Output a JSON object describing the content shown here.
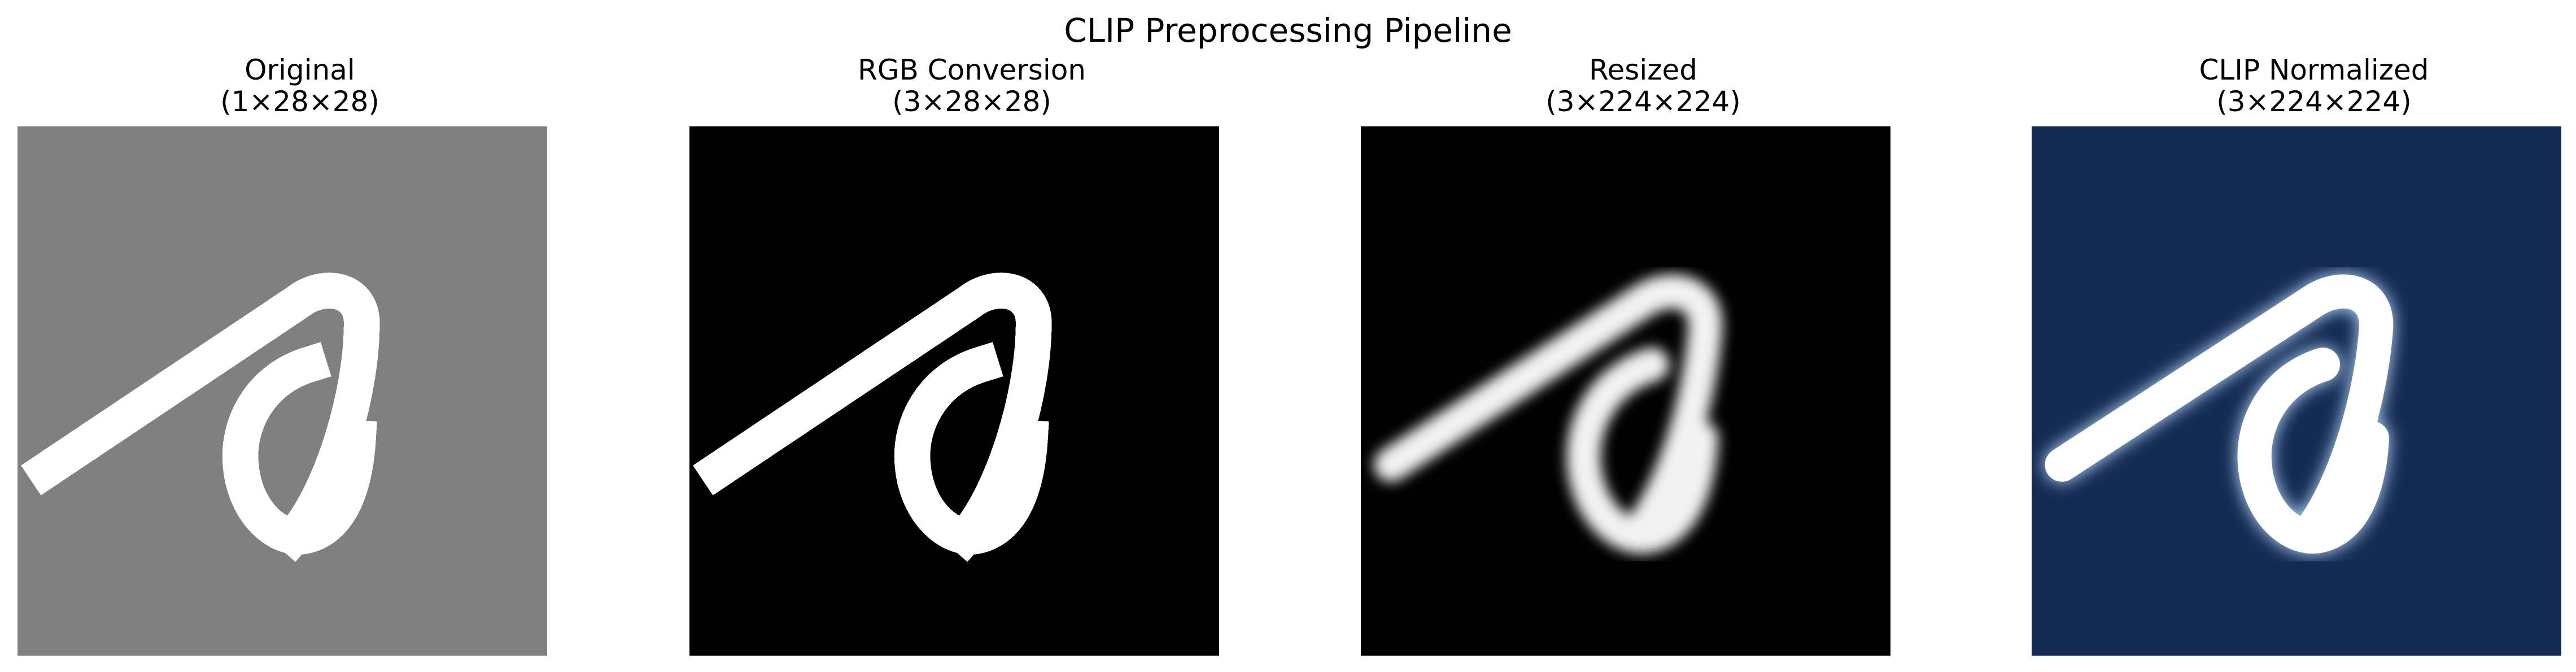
{
  "title": "CLIP Preprocessing Pipeline",
  "panels": [
    {
      "title": "Original",
      "shape": "(1×28×28)",
      "image": {
        "subject": "handwritten character",
        "background": "#808080",
        "stroke": "#ffffff",
        "style": "pixelated"
      }
    },
    {
      "title": "RGB Conversion",
      "shape": "(3×28×28)",
      "image": {
        "subject": "handwritten character",
        "background": "#000000",
        "stroke": "#ffffff",
        "style": "pixelated"
      }
    },
    {
      "title": "Resized",
      "shape": "(3×224×224)",
      "image": {
        "subject": "handwritten character",
        "background": "#000000",
        "stroke": "#ffffff",
        "style": "smooth"
      }
    },
    {
      "title": "CLIP Normalized",
      "shape": "(3×224×224)",
      "image": {
        "subject": "handwritten character",
        "background": "#142a55",
        "stroke": "#ffffff",
        "edge": "#bfe3ff",
        "style": "smooth"
      }
    }
  ]
}
